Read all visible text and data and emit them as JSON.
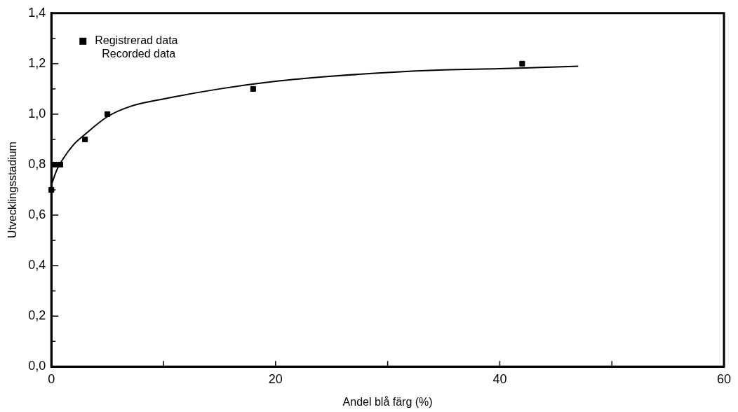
{
  "chart_data": {
    "type": "scatter",
    "xlabel": "Andel blå färg (%)",
    "ylabel": "Utvecklingsstadium",
    "series": [
      {
        "name": "Registrerad data\nRecorded data",
        "color": "#000000",
        "marker": "square",
        "x": [
          0,
          0.3,
          0.8,
          3,
          5,
          18,
          42
        ],
        "values": [
          0.7,
          0.8,
          0.8,
          0.9,
          1.0,
          1.1,
          1.2
        ]
      },
      {
        "type": "line",
        "marker": "none",
        "color": "#000000",
        "x": [
          0,
          0.5,
          1,
          2,
          3,
          5,
          7,
          10,
          15,
          20,
          25,
          30,
          35,
          40,
          47
        ],
        "values": [
          0.72,
          0.78,
          0.82,
          0.88,
          0.92,
          0.99,
          1.03,
          1.06,
          1.1,
          1.13,
          1.15,
          1.165,
          1.175,
          1.18,
          1.19
        ]
      }
    ],
    "xlim": [
      0,
      60
    ],
    "xticks": [
      0,
      {
        "value": 10,
        "label": null
      },
      20,
      {
        "value": 30,
        "label": null
      },
      40,
      {
        "value": 50,
        "label": null
      },
      60
    ],
    "ylim": [
      0,
      1.4
    ],
    "yticks": [
      {
        "value": 0,
        "label": "0,0"
      },
      {
        "value": 0.1,
        "label": null
      },
      {
        "value": 0.2,
        "label": "0,2"
      },
      {
        "value": 0.3,
        "label": null
      },
      {
        "value": 0.4,
        "label": "0,4"
      },
      {
        "value": 0.5,
        "label": null
      },
      {
        "value": 0.6,
        "label": "0,6"
      },
      {
        "value": 0.7,
        "label": null
      },
      {
        "value": 0.8,
        "label": "0,8"
      },
      {
        "value": 0.9,
        "label": null
      },
      {
        "value": 1.0,
        "label": "1,0"
      },
      {
        "value": 1.1,
        "label": null
      },
      {
        "value": 1.2,
        "label": "1,2"
      },
      {
        "value": 1.3,
        "label": null
      },
      {
        "value": 1.4,
        "label": "1,4"
      }
    ],
    "legend": "top left",
    "grid": false
  }
}
